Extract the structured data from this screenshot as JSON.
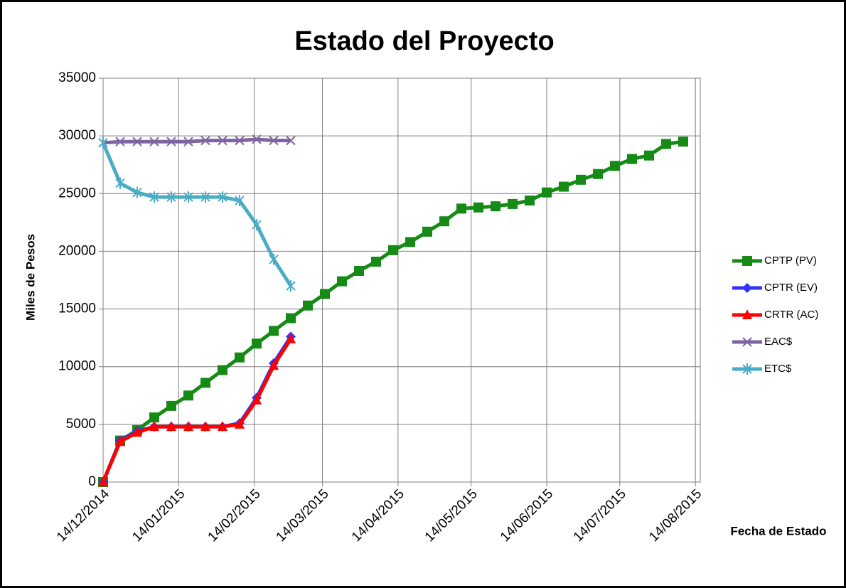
{
  "chart_data": {
    "type": "line",
    "title": "Estado del Proyecto",
    "xlabel": "Fecha de Estado",
    "ylabel": "Miles de Pesos",
    "x": [
      "14/12/2014",
      "21/12/2014",
      "28/12/2014",
      "04/01/2015",
      "11/01/2015",
      "18/01/2015",
      "25/01/2015",
      "01/02/2015",
      "08/02/2015",
      "15/02/2015",
      "22/02/2015",
      "01/03/2015",
      "08/03/2015",
      "15/03/2015",
      "22/03/2015",
      "29/03/2015",
      "05/04/2015",
      "12/04/2015",
      "19/04/2015",
      "26/04/2015",
      "03/05/2015",
      "10/05/2015",
      "17/05/2015",
      "24/05/2015",
      "31/05/2015",
      "07/06/2015",
      "14/06/2015",
      "21/06/2015",
      "28/06/2015",
      "05/07/2015",
      "12/07/2015",
      "19/07/2015",
      "26/07/2015",
      "02/08/2015",
      "09/08/2015"
    ],
    "series": [
      {
        "name": "CPTP (PV)",
        "color": "#158a15",
        "marker": "square",
        "values": [
          0,
          3600,
          4500,
          5600,
          6600,
          7500,
          8600,
          9700,
          10800,
          12000,
          13100,
          14200,
          15300,
          16300,
          17400,
          18300,
          19100,
          20100,
          20800,
          21700,
          22600,
          23700,
          23800,
          23900,
          24100,
          24400,
          25100,
          25600,
          26200,
          26700,
          27400,
          28000,
          28300,
          29300,
          29500
        ]
      },
      {
        "name": "CPTR (EV)",
        "color": "#3333ff",
        "marker": "diamond",
        "values": [
          0,
          3600,
          4400,
          4800,
          4800,
          4800,
          4800,
          4800,
          5100,
          7300,
          10300,
          12600,
          null,
          null,
          null,
          null,
          null,
          null,
          null,
          null,
          null,
          null,
          null,
          null,
          null,
          null,
          null,
          null,
          null,
          null,
          null,
          null,
          null,
          null,
          null
        ]
      },
      {
        "name": "CRTR (AC)",
        "color": "#ff0000",
        "marker": "triangle",
        "values": [
          0,
          3500,
          4300,
          4800,
          4800,
          4800,
          4800,
          4800,
          5000,
          7100,
          10100,
          12400,
          null,
          null,
          null,
          null,
          null,
          null,
          null,
          null,
          null,
          null,
          null,
          null,
          null,
          null,
          null,
          null,
          null,
          null,
          null,
          null,
          null,
          null,
          null
        ]
      },
      {
        "name": "EAC$",
        "color": "#8064a2",
        "marker": "x",
        "values": [
          29400,
          29500,
          29500,
          29500,
          29500,
          29500,
          29600,
          29600,
          29600,
          29700,
          29600,
          29600,
          null,
          null,
          null,
          null,
          null,
          null,
          null,
          null,
          null,
          null,
          null,
          null,
          null,
          null,
          null,
          null,
          null,
          null,
          null,
          null,
          null,
          null,
          null
        ]
      },
      {
        "name": "ETC$",
        "color": "#4bacc6",
        "marker": "star",
        "values": [
          29400,
          25900,
          25100,
          24700,
          24700,
          24700,
          24700,
          24700,
          24400,
          22300,
          19300,
          17000,
          null,
          null,
          null,
          null,
          null,
          null,
          null,
          null,
          null,
          null,
          null,
          null,
          null,
          null,
          null,
          null,
          null,
          null,
          null,
          null,
          null,
          null,
          null
        ]
      }
    ],
    "xlim": [
      "14/12/2014",
      "16/08/2015"
    ],
    "xticks": [
      "14/12/2014",
      "14/01/2015",
      "14/02/2015",
      "14/03/2015",
      "14/04/2015",
      "14/05/2015",
      "14/06/2015",
      "14/07/2015",
      "14/08/2015"
    ],
    "ylim": [
      0,
      35000
    ],
    "yticks": [
      0,
      5000,
      10000,
      15000,
      20000,
      25000,
      30000,
      35000
    ],
    "grid": true,
    "legend": "right"
  }
}
